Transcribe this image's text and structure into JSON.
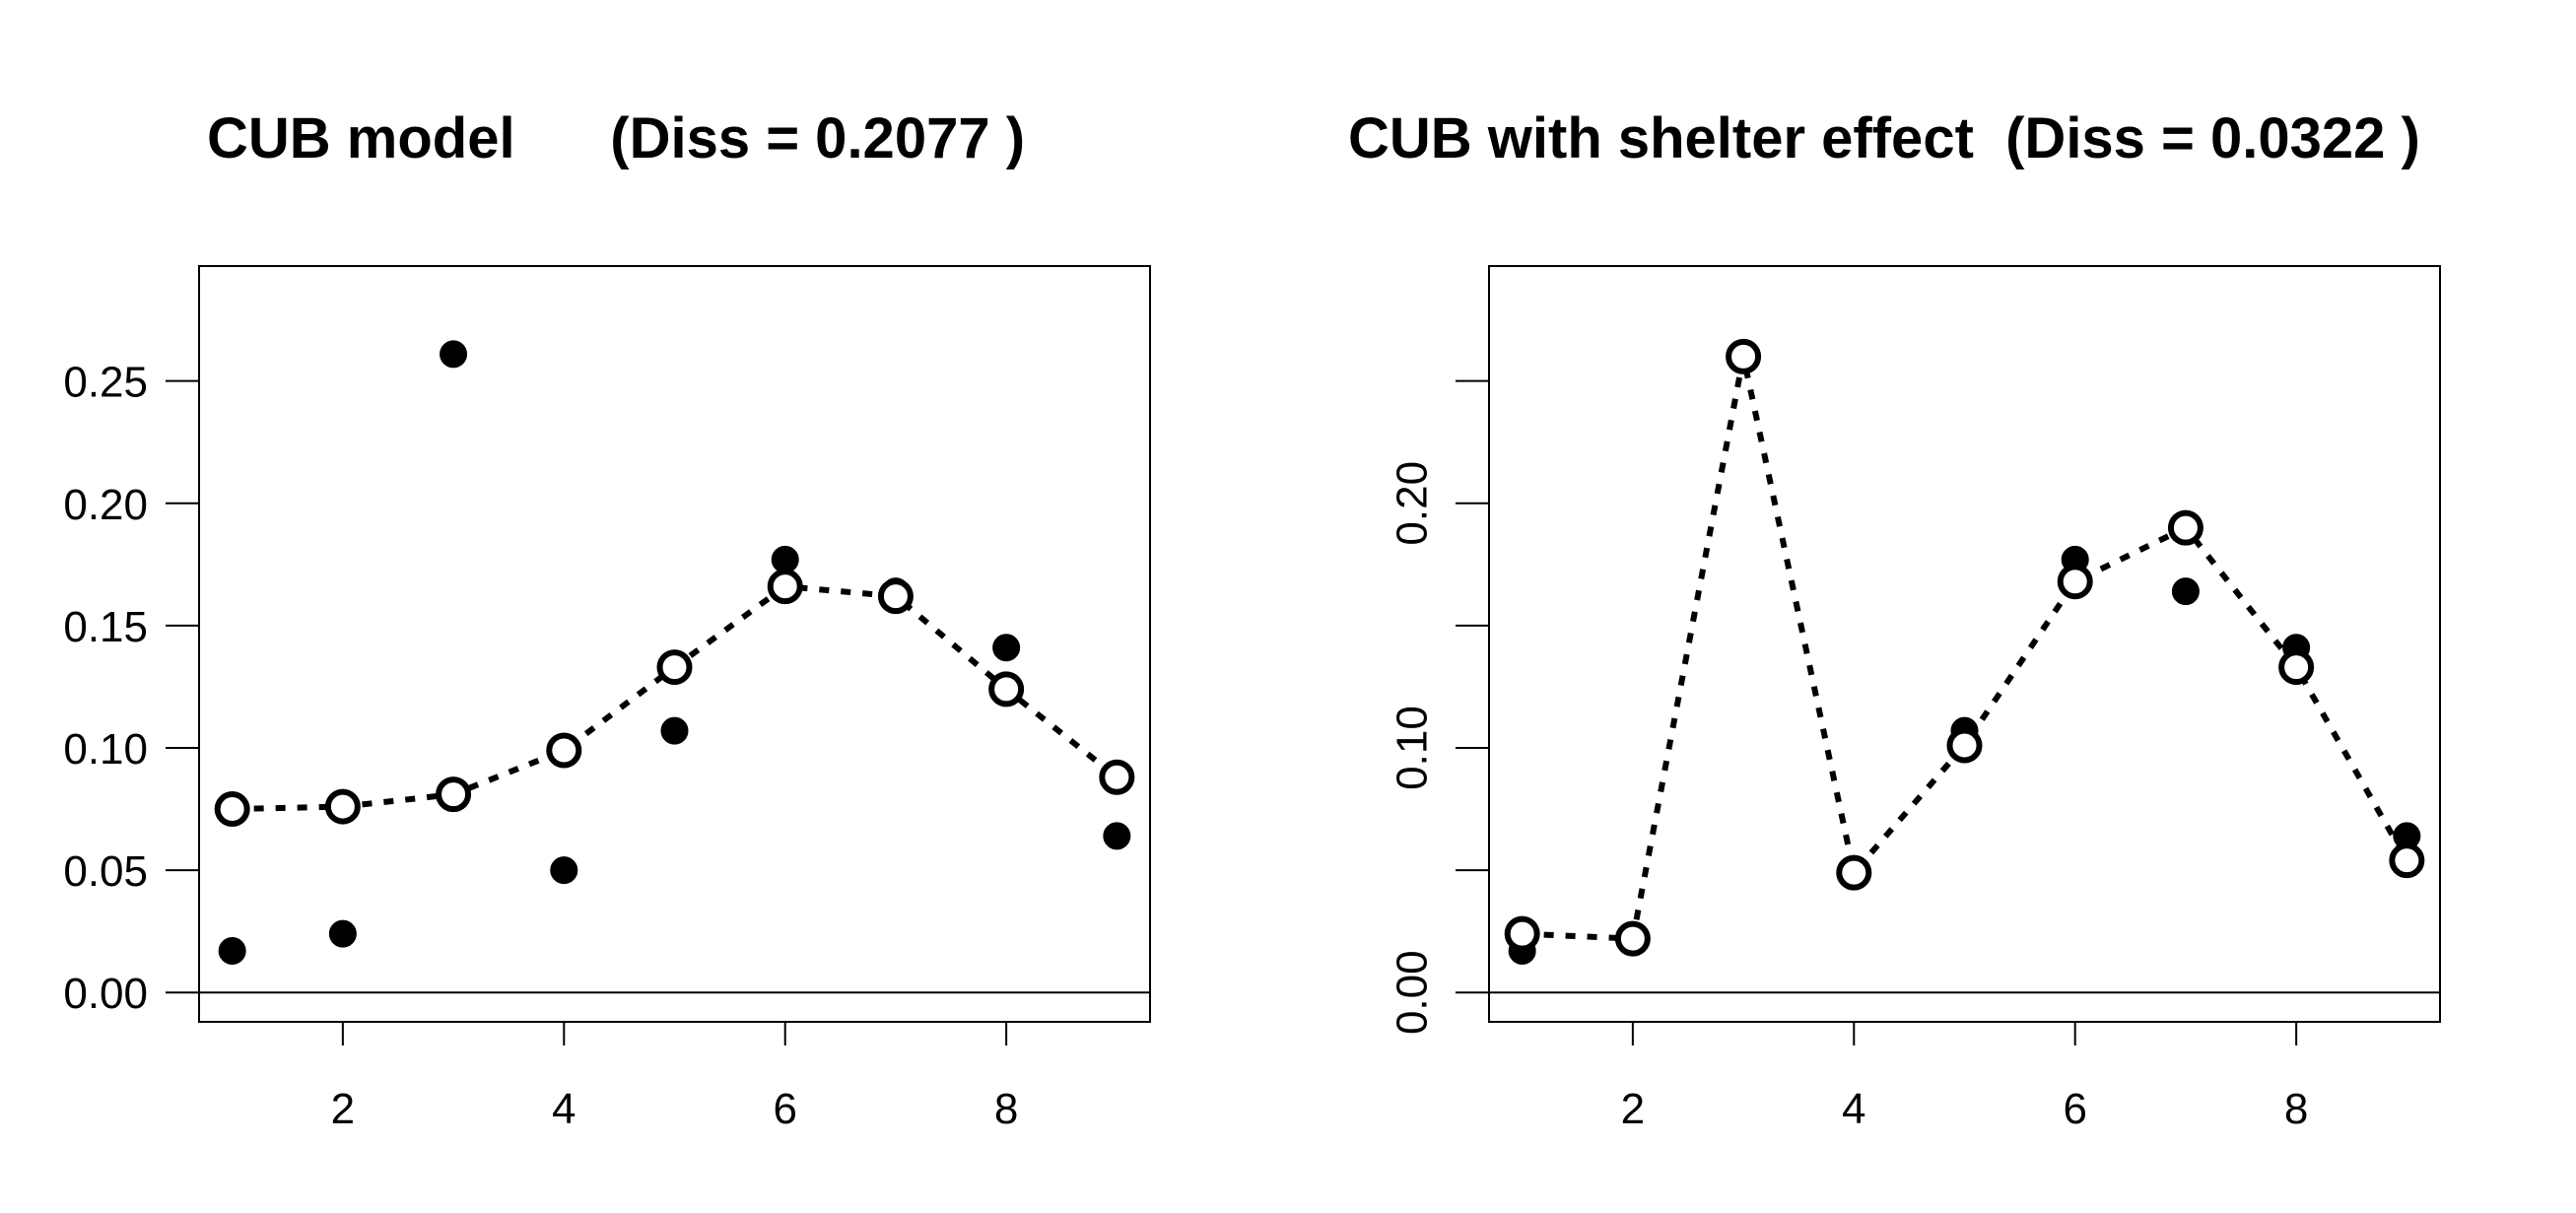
{
  "chart_data": [
    {
      "type": "scatter",
      "title": "CUB model      (Diss = 0.2077 )",
      "xlabel": "",
      "ylabel": "",
      "xlim": [
        0.7,
        9.3
      ],
      "ylim": [
        -0.012,
        0.297
      ],
      "x_ticks": [
        2,
        4,
        6,
        8
      ],
      "x_tick_labels": [
        "2",
        "4",
        "6",
        "8"
      ],
      "y_ticks": [
        0.0,
        0.05,
        0.1,
        0.15,
        0.2,
        0.25
      ],
      "y_tick_labels": [
        "0.00",
        "0.05",
        "0.10",
        "0.15",
        "0.20",
        "0.25"
      ],
      "y_tick_labels_rotated": false,
      "grid": false,
      "reference_line_y": 0,
      "series": [
        {
          "style": "filled-points",
          "x": [
            1,
            2,
            3,
            4,
            5,
            6,
            7,
            8,
            9
          ],
          "values": [
            0.017,
            0.024,
            0.261,
            0.05,
            0.107,
            0.177,
            0.164,
            0.141,
            0.064
          ]
        },
        {
          "style": "open-points-dotted-line",
          "x": [
            1,
            2,
            3,
            4,
            5,
            6,
            7,
            8,
            9
          ],
          "values": [
            0.075,
            0.076,
            0.081,
            0.099,
            0.133,
            0.166,
            0.162,
            0.124,
            0.088
          ]
        }
      ]
    },
    {
      "type": "scatter",
      "title": "CUB with shelter effect  (Diss = 0.0322 )",
      "xlabel": "",
      "ylabel": "",
      "xlim": [
        0.7,
        9.3
      ],
      "ylim": [
        -0.012,
        0.297
      ],
      "x_ticks": [
        2,
        4,
        6,
        8
      ],
      "x_tick_labels": [
        "2",
        "4",
        "6",
        "8"
      ],
      "y_ticks": [
        0.0,
        0.05,
        0.1,
        0.15,
        0.2,
        0.25
      ],
      "y_tick_labels": [
        "0.00",
        "",
        "0.10",
        "",
        "0.20",
        ""
      ],
      "y_tick_labels_rotated": true,
      "grid": false,
      "reference_line_y": 0,
      "series": [
        {
          "style": "filled-points",
          "x": [
            1,
            2,
            3,
            4,
            5,
            6,
            7,
            8,
            9
          ],
          "values": [
            0.017,
            0.023,
            0.261,
            0.05,
            0.107,
            0.177,
            0.164,
            0.141,
            0.064
          ]
        },
        {
          "style": "open-points-dotted-line",
          "x": [
            1,
            2,
            3,
            4,
            5,
            6,
            7,
            8,
            9
          ],
          "values": [
            0.024,
            0.022,
            0.26,
            0.049,
            0.101,
            0.168,
            0.19,
            0.133,
            0.054
          ]
        }
      ]
    }
  ]
}
